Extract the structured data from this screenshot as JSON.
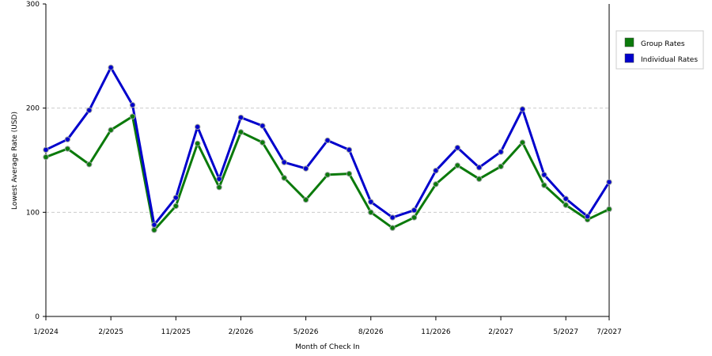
{
  "chart_data": {
    "type": "line",
    "xlabel": "Month of Check In",
    "ylabel": "Lowest Average Rate (USD)",
    "ylim": [
      0,
      300
    ],
    "y_ticks": [
      "0",
      "100",
      "200",
      "300"
    ],
    "x_tick_labels": [
      {
        "index": 0,
        "label": "1/2024"
      },
      {
        "index": 3,
        "label": "2/2025"
      },
      {
        "index": 6,
        "label": "11/2025"
      },
      {
        "index": 9,
        "label": "2/2026"
      },
      {
        "index": 12,
        "label": "5/2026"
      },
      {
        "index": 15,
        "label": "8/2026"
      },
      {
        "index": 18,
        "label": "11/2026"
      },
      {
        "index": 21,
        "label": "2/2027"
      },
      {
        "index": 24,
        "label": "5/2027"
      },
      {
        "index": 26,
        "label": "7/2027"
      }
    ],
    "grid": "horizontal dashed",
    "legend_position": "right",
    "series": [
      {
        "name": "Group Rates",
        "color": "#0b7a0b",
        "values": [
          153,
          161,
          146,
          179,
          192,
          83,
          106,
          166,
          124,
          177,
          167,
          133,
          112,
          136,
          137,
          100,
          85,
          95,
          127,
          145,
          132,
          144,
          167,
          126,
          107,
          93,
          103
        ]
      },
      {
        "name": "Individual Rates",
        "color": "#0000cc",
        "values": [
          160,
          170,
          198,
          239,
          203,
          88,
          114,
          182,
          132,
          191,
          183,
          148,
          142,
          169,
          160,
          110,
          95,
          102,
          140,
          162,
          143,
          158,
          199,
          136,
          113,
          96,
          129
        ]
      }
    ]
  }
}
